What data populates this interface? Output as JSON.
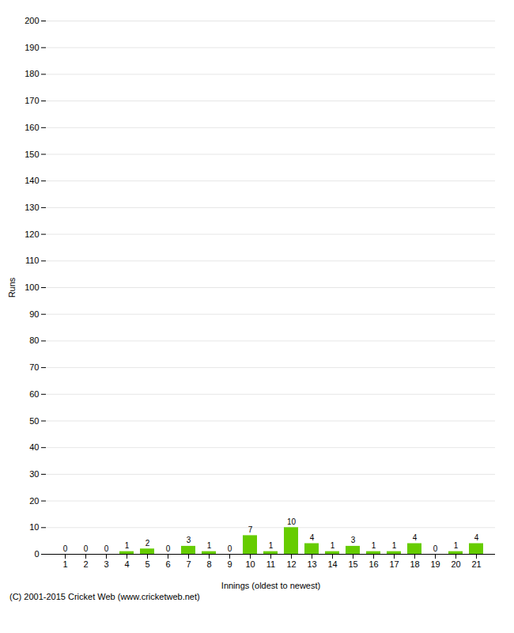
{
  "chart_data": {
    "type": "bar",
    "categories": [
      "1",
      "2",
      "3",
      "4",
      "5",
      "6",
      "7",
      "8",
      "9",
      "10",
      "11",
      "12",
      "13",
      "14",
      "15",
      "16",
      "17",
      "18",
      "19",
      "20",
      "21"
    ],
    "values": [
      0,
      0,
      0,
      1,
      2,
      0,
      3,
      1,
      0,
      7,
      1,
      10,
      4,
      1,
      3,
      1,
      1,
      4,
      0,
      1,
      4
    ],
    "color": "#66cc00",
    "xlabel": "Innings (oldest to newest)",
    "ylabel": "Runs",
    "ylim": [
      0,
      200
    ],
    "yticks": [
      0,
      10,
      20,
      30,
      40,
      50,
      60,
      70,
      80,
      90,
      100,
      110,
      120,
      130,
      140,
      150,
      160,
      170,
      180,
      190,
      200
    ],
    "grid": true,
    "data_labels": true,
    "caption": "(C) 2001-2015 Cricket Web (www.cricketweb.net)"
  }
}
